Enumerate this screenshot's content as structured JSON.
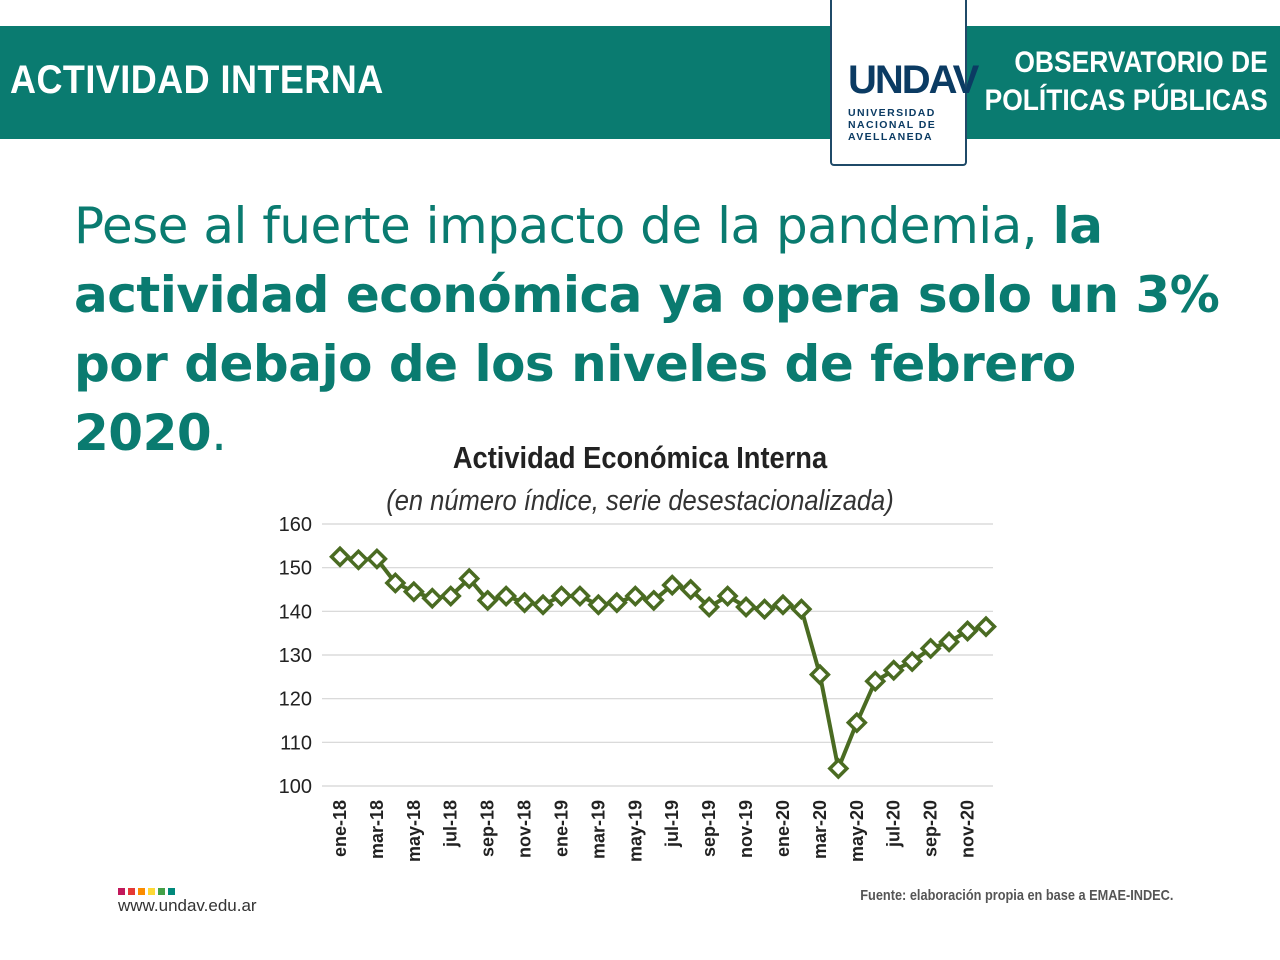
{
  "header": {
    "title": "ACTIVIDAD INTERNA",
    "observatory_line1": "OBSERVATORIO DE",
    "observatory_line2": "POLÍTICAS PÚBLICAS",
    "logo_word": "UNDAV",
    "logo_sub1": "UNIVERSIDAD",
    "logo_sub2": "NACIONAL DE",
    "logo_sub3": "AVELLANEDA"
  },
  "headline": {
    "light": "Pese al fuerte impacto de la pandemia, ",
    "strong": "la actividad económica ya opera solo un 3% por debajo de los niveles de febrero 2020",
    "end": "."
  },
  "footer": {
    "website": "www.undav.edu.ar",
    "source": "Fuente: elaboración propia en base a EMAE-INDEC.",
    "dot_colors": [
      "#c2185b",
      "#e53935",
      "#fb8c00",
      "#fdd835",
      "#43a047",
      "#00897b"
    ]
  },
  "chart_data": {
    "type": "line",
    "title": "Actividad Económica Interna",
    "subtitle": "(en número índice, serie desestacionalizada)",
    "xlabel": "",
    "ylabel": "",
    "ylim": [
      100,
      160
    ],
    "yticks": [
      100,
      110,
      120,
      130,
      140,
      150,
      160
    ],
    "grid": true,
    "color": "#4a6b22",
    "x": [
      "ene-18",
      "feb-18",
      "mar-18",
      "abr-18",
      "may-18",
      "jun-18",
      "jul-18",
      "ago-18",
      "sep-18",
      "oct-18",
      "nov-18",
      "dic-18",
      "ene-19",
      "feb-19",
      "mar-19",
      "abr-19",
      "may-19",
      "jun-19",
      "jul-19",
      "ago-19",
      "sep-19",
      "oct-19",
      "nov-19",
      "dic-19",
      "ene-20",
      "feb-20",
      "mar-20",
      "abr-20",
      "may-20",
      "jun-20",
      "jul-20",
      "ago-20",
      "sep-20",
      "oct-20",
      "nov-20",
      "dic-20"
    ],
    "xtick_labels": [
      "ene-18",
      "mar-18",
      "may-18",
      "jul-18",
      "sep-18",
      "nov-18",
      "ene-19",
      "mar-19",
      "may-19",
      "jul-19",
      "sep-19",
      "nov-19",
      "ene-20",
      "mar-20",
      "may-20",
      "jul-20",
      "sep-20",
      "nov-20"
    ],
    "values": [
      152.5,
      151.8,
      152.0,
      146.5,
      144.5,
      143.0,
      143.5,
      147.5,
      142.5,
      143.5,
      142.0,
      141.5,
      143.5,
      143.5,
      141.5,
      142.0,
      143.5,
      142.5,
      146.0,
      145.0,
      141.0,
      143.5,
      141.0,
      140.5,
      141.5,
      140.5,
      125.5,
      104.0,
      114.5,
      124.0,
      126.5,
      128.5,
      131.5,
      133.0,
      135.5,
      136.5
    ]
  }
}
